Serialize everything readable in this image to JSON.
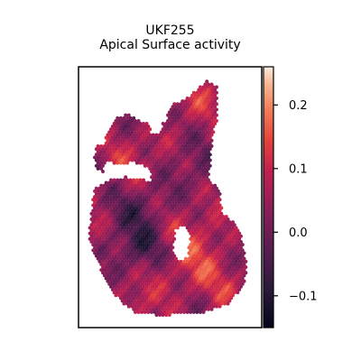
{
  "chart_data": {
    "type": "spatial_scatter",
    "title": [
      "UKF255",
      "Apical Surface activity"
    ],
    "xlabel": "",
    "ylabel": "",
    "x_axis_ticks": false,
    "y_axis_ticks": false,
    "grid": false,
    "colormap": "rocket",
    "colorbar": {
      "range": [
        -0.15,
        0.26
      ],
      "ticks": [
        0.2,
        0.1,
        0.0,
        -0.1
      ],
      "tick_labels": [
        "0.2",
        "0.1",
        "0.0",
        "−0.1"
      ],
      "placement": "right"
    },
    "points": "hexagonal grid of spots covering the tissue outline; activity values roughly -0.15 to 0.26"
  }
}
